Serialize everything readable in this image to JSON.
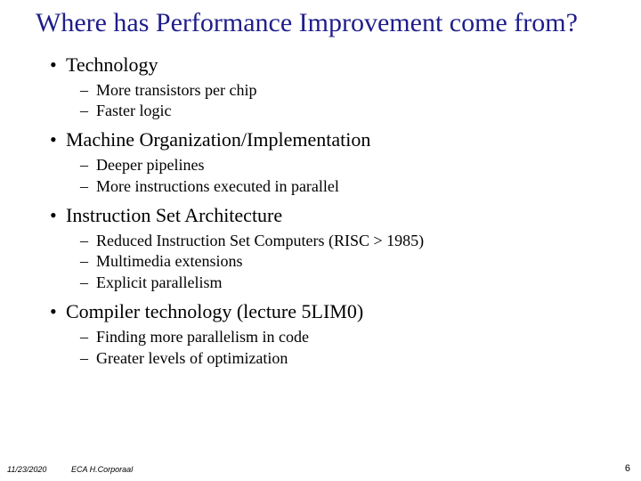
{
  "title": "Where has Performance Improvement come from?",
  "sections": [
    {
      "heading": "Technology",
      "items": [
        "More transistors per chip",
        "Faster logic"
      ]
    },
    {
      "heading": "Machine Organization/Implementation",
      "items": [
        "Deeper pipelines",
        "More instructions executed in parallel"
      ]
    },
    {
      "heading": "Instruction Set Architecture",
      "items": [
        "Reduced Instruction Set Computers (RISC > 1985)",
        "Multimedia extensions",
        "Explicit parallelism"
      ]
    },
    {
      "heading": "Compiler technology (lecture 5LIM0)",
      "items": [
        "Finding more parallelism in code",
        "Greater levels of optimization"
      ]
    }
  ],
  "footer": {
    "date": "11/23/2020",
    "center": "ECA  H.Corporaal",
    "page": "6"
  },
  "colors": {
    "title": "#1f1e8a",
    "text": "#000000",
    "background": "#ffffff"
  },
  "fonts": {
    "title_size": 30,
    "l1_size": 22,
    "l2_size": 18,
    "footer_size": 9
  }
}
